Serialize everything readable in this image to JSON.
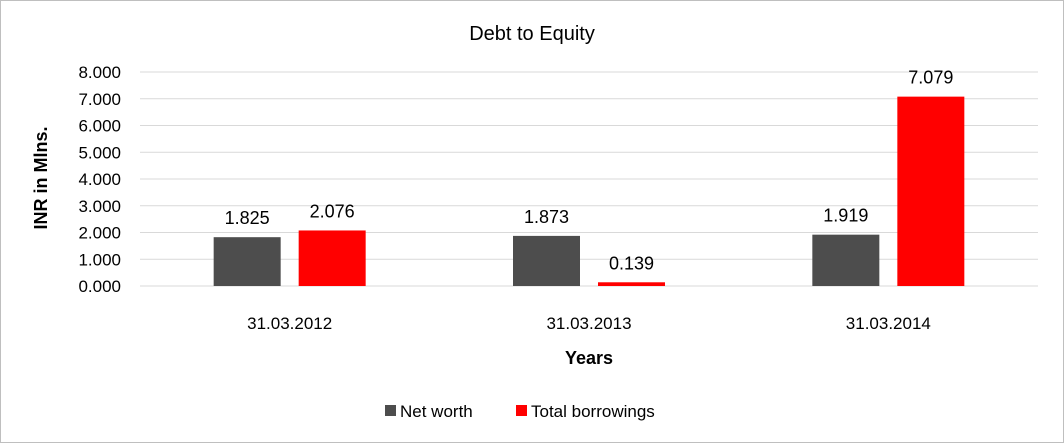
{
  "chart_data": {
    "type": "bar",
    "title": "Debt to Equity",
    "xlabel": "Years",
    "ylabel": "INR in Mlns.",
    "categories": [
      "31.03.2012",
      "31.03.2013",
      "31.03.2014"
    ],
    "series": [
      {
        "name": "Net worth",
        "color": "#4d4d4d",
        "values": [
          1.825,
          1.873,
          1.919
        ],
        "labels": [
          "1.825",
          "1.873",
          "1.919"
        ]
      },
      {
        "name": "Total borrowings",
        "color": "#ff0000",
        "values": [
          2.076,
          0.139,
          7.079
        ],
        "labels": [
          "2.076",
          "0.139",
          "7.079"
        ]
      }
    ],
    "ylim": [
      0,
      8
    ],
    "yticks": [
      "0.000",
      "1.000",
      "2.000",
      "3.000",
      "4.000",
      "5.000",
      "6.000",
      "7.000",
      "8.000"
    ],
    "grid": true,
    "legend_position": "bottom"
  }
}
